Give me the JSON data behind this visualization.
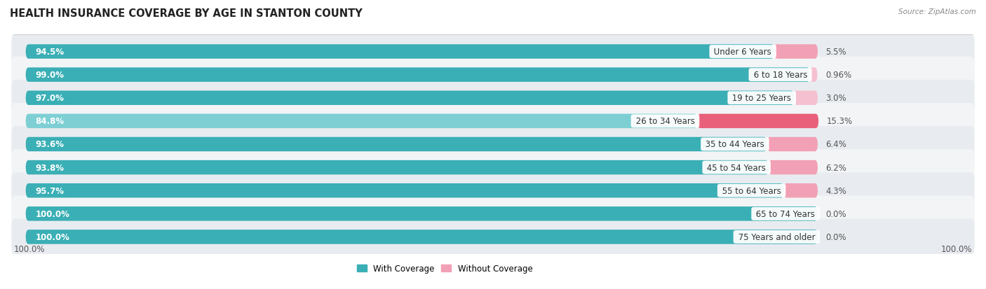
{
  "title": "HEALTH INSURANCE COVERAGE BY AGE IN STANTON COUNTY",
  "source": "Source: ZipAtlas.com",
  "categories": [
    "Under 6 Years",
    "6 to 18 Years",
    "19 to 25 Years",
    "26 to 34 Years",
    "35 to 44 Years",
    "45 to 54 Years",
    "55 to 64 Years",
    "65 to 74 Years",
    "75 Years and older"
  ],
  "with_coverage": [
    94.5,
    99.0,
    97.0,
    84.8,
    93.6,
    93.8,
    95.7,
    100.0,
    100.0
  ],
  "without_coverage": [
    5.5,
    0.96,
    3.0,
    15.3,
    6.4,
    6.2,
    4.3,
    0.0,
    0.0
  ],
  "with_coverage_labels": [
    "94.5%",
    "99.0%",
    "97.0%",
    "84.8%",
    "93.6%",
    "93.8%",
    "95.7%",
    "100.0%",
    "100.0%"
  ],
  "without_coverage_labels": [
    "5.5%",
    "0.96%",
    "3.0%",
    "15.3%",
    "6.4%",
    "6.2%",
    "4.3%",
    "0.0%",
    "0.0%"
  ],
  "color_with_dark": "#3AAFB5",
  "color_with_light": "#7DCFD4",
  "color_without_vivid": "#E8607A",
  "color_without_light": "#F2A0B5",
  "color_without_vlight": "#F5C0D0",
  "row_bg_dark": "#E8ECF0",
  "row_bg_light": "#F2F4F6",
  "title_fontsize": 10.5,
  "source_fontsize": 7.5,
  "label_fontsize": 8.5,
  "category_fontsize": 8.5,
  "legend_fontsize": 8.5,
  "bar_height": 0.62,
  "total_scale": 100.0,
  "x_axis_label_left": "100.0%",
  "x_axis_label_right": "100.0%"
}
